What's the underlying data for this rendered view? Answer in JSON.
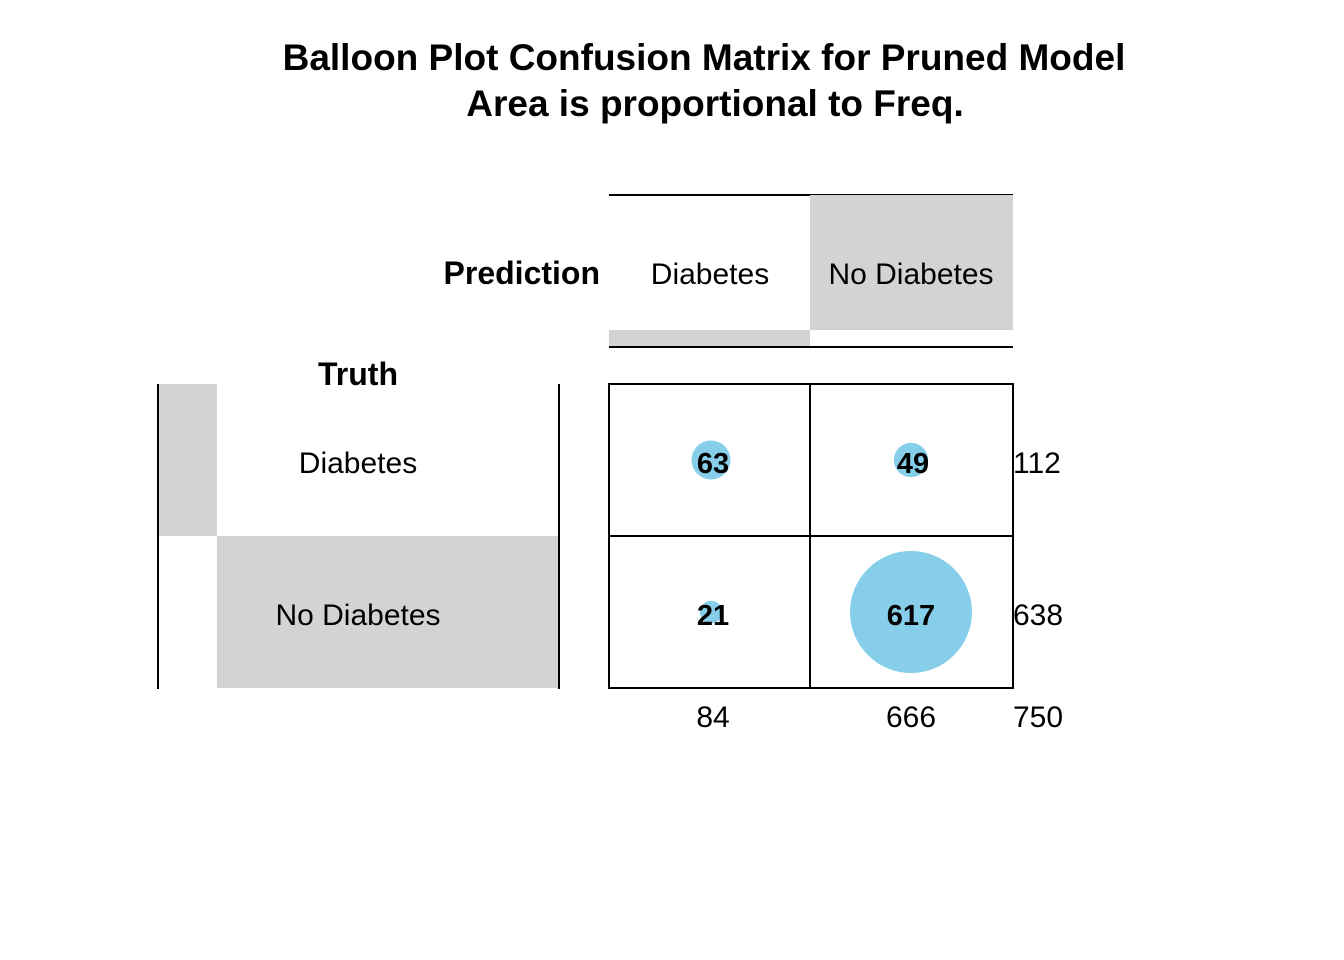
{
  "chart_data": {
    "type": "heatmap",
    "title": "Balloon Plot Confusion Matrix for Pruned Model",
    "subtitle": "Area is proportional to Freq.",
    "col_header": "Prediction",
    "row_header": "Truth",
    "columns": [
      "Diabetes",
      "No Diabetes"
    ],
    "rows": [
      "Diabetes",
      "No Diabetes"
    ],
    "values": [
      [
        63,
        49
      ],
      [
        21,
        617
      ]
    ],
    "row_totals": [
      112,
      638
    ],
    "col_totals": [
      84,
      666
    ],
    "grand_total": 750,
    "colors": {
      "balloon": "#87ceeb",
      "shade": "#d3d3d3",
      "line": "#000000",
      "text": "#000000"
    }
  }
}
